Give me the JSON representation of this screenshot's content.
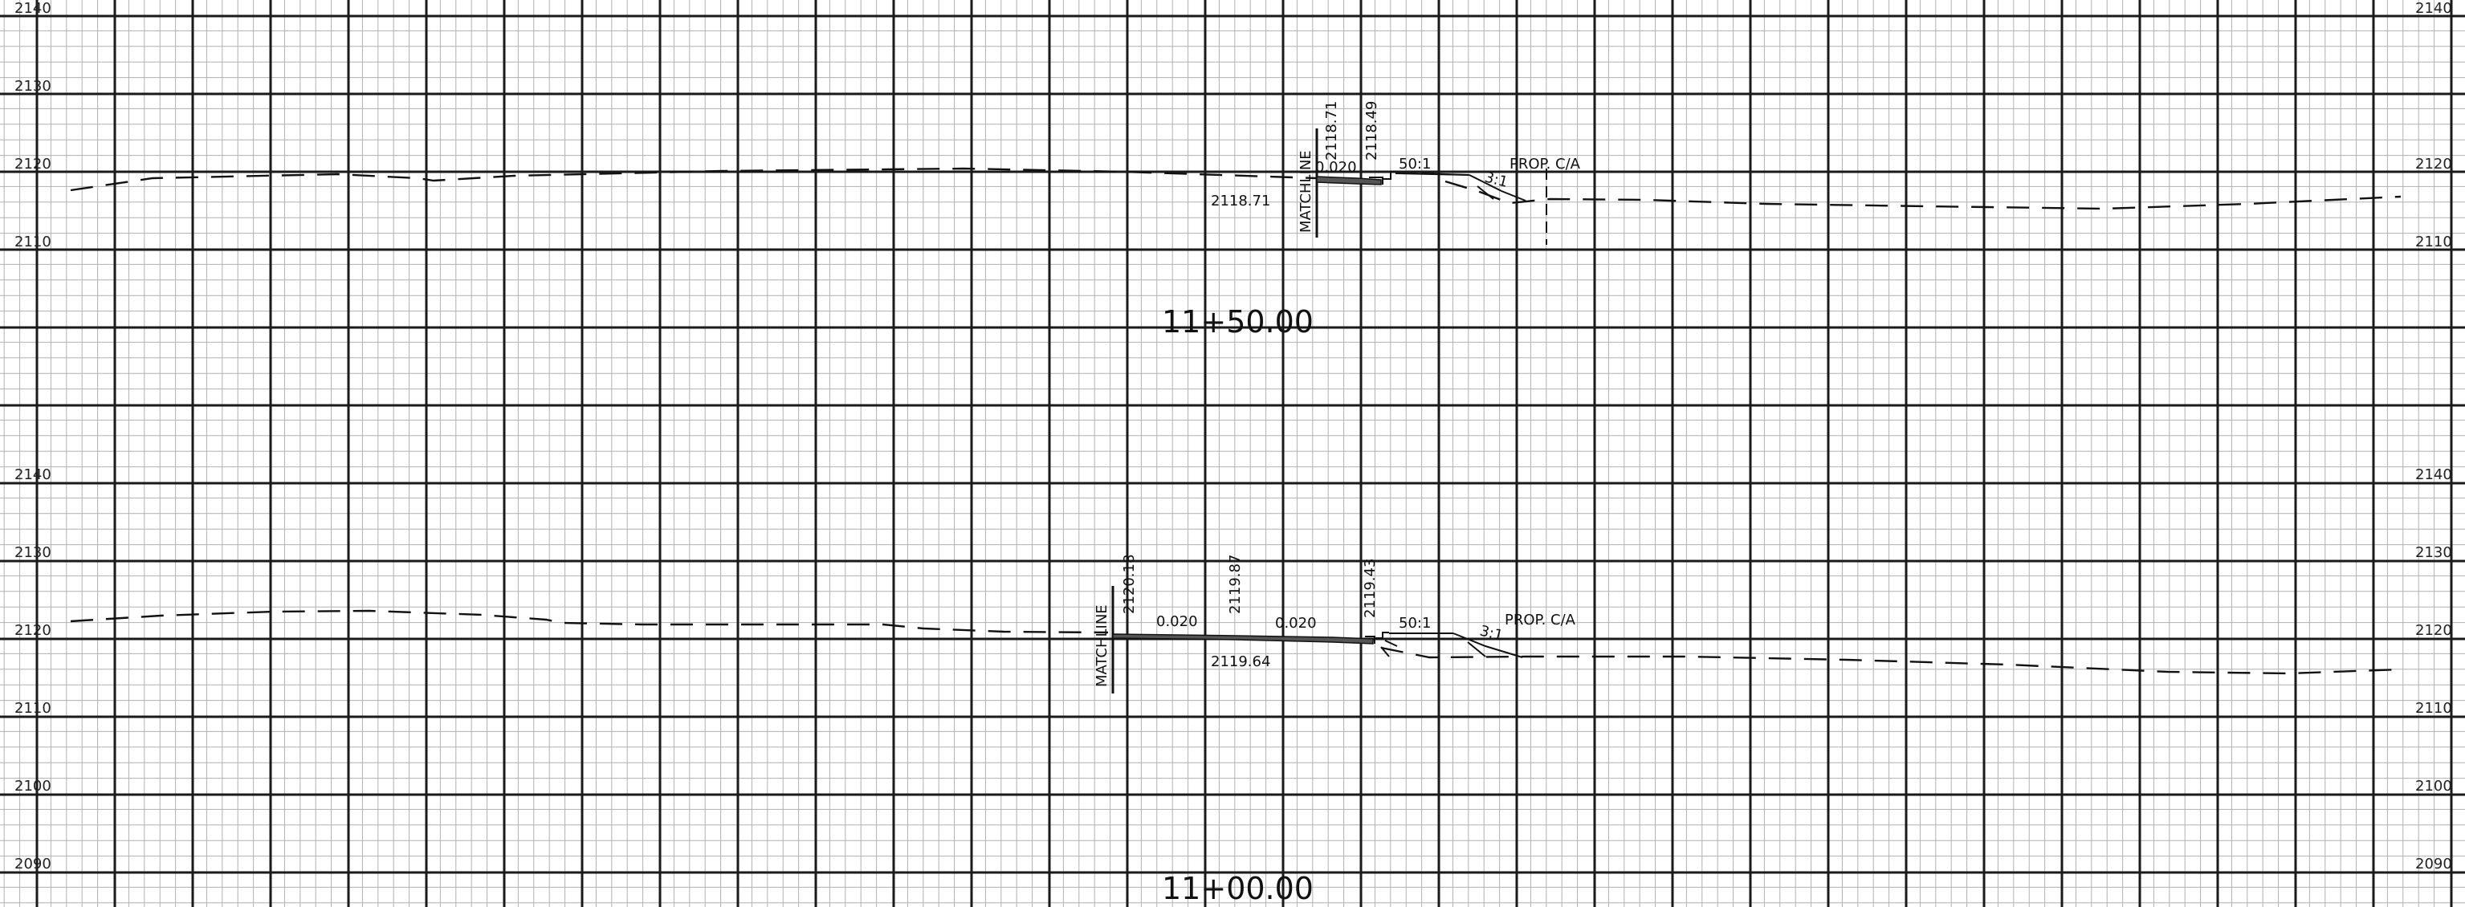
{
  "sections": [
    {
      "station": "11+50.00",
      "elev_labels_left": [
        "2140",
        "2130",
        "2120",
        "2110"
      ],
      "elev_labels_right": [
        "2140",
        "2120",
        "2110"
      ],
      "annotations": {
        "matchline": "MATCHLINE",
        "grade_top_1": "2118.71",
        "grade_top_2": "2118.49",
        "slope_1": "0.020",
        "grade_bottom": "2118.71",
        "slope_ratio": "50:1",
        "side_slope": "3:1",
        "prop_ca": "PROP. C/A"
      }
    },
    {
      "station": "11+00.00",
      "elev_labels_left": [
        "2140",
        "2130",
        "2120",
        "2110",
        "2100",
        "2090"
      ],
      "elev_labels_right": [
        "2140",
        "2130",
        "2120",
        "2110",
        "2100",
        "2090"
      ],
      "annotations": {
        "matchline": "MATCHLINE",
        "grade_top_1": "2120.18",
        "grade_top_2": "2119.87",
        "grade_top_3": "2119.43",
        "slope_1": "0.020",
        "slope_2": "0.020",
        "grade_bottom": "2119.64",
        "slope_ratio": "50:1",
        "side_slope": "3:1",
        "prop_ca": "PROP. C/A"
      }
    }
  ],
  "colors": {
    "major_grid": "#1a1a1a",
    "minor_grid": "#b0b0b0",
    "linework": "#111111",
    "background": "#ffffff"
  }
}
